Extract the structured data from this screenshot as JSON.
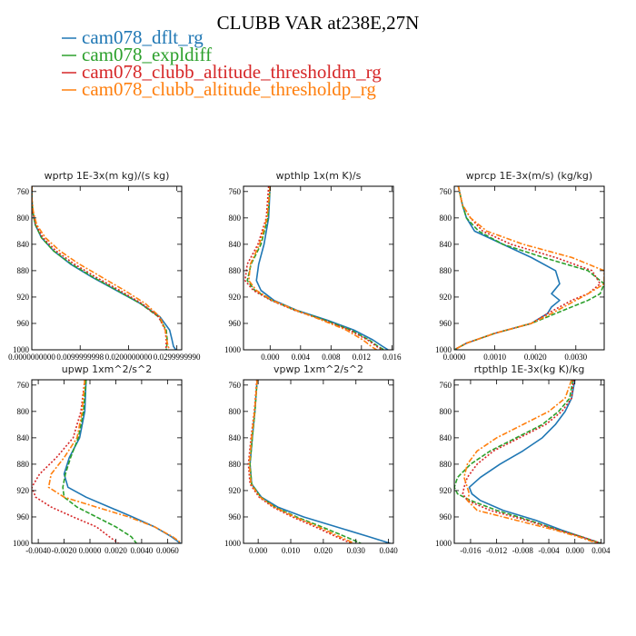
{
  "figure": {
    "title": "CLUBB VAR at238E,27N"
  },
  "legend": [
    {
      "name": "cam078_dflt_rg",
      "color": "#1f77b4"
    },
    {
      "name": "cam078_expldiff",
      "color": "#2ca02c"
    },
    {
      "name": "cam078_clubb_altitude_thresholdm_rg",
      "color": "#d62728"
    },
    {
      "name": "cam078_clubb_altitude_thresholdp_rg",
      "color": "#ff7f0e"
    }
  ],
  "chart_data": [
    {
      "type": "line",
      "title": "wprtp  1E-3x(m kg)/(s kg)",
      "xlim": [
        0,
        0.031
      ],
      "ylim": [
        1000,
        752
      ],
      "xticks": [
        0,
        0.01,
        0.02,
        0.03
      ],
      "xtick_labels": [
        "0.0000000000",
        "0.0099999998",
        "0.0200000000",
        "0.0299999990"
      ],
      "yticks": [
        760,
        800,
        840,
        880,
        920,
        960,
        1000
      ],
      "y": [
        752,
        770,
        790,
        810,
        830,
        850,
        870,
        890,
        910,
        930,
        950,
        970,
        985,
        995,
        1000
      ],
      "series": [
        {
          "name": "cam078_dflt_rg",
          "values": [
            0.0,
            0.0,
            0.0002,
            0.0007,
            0.002,
            0.0045,
            0.008,
            0.0125,
            0.0175,
            0.0225,
            0.0265,
            0.0285,
            0.029,
            0.0293,
            0.0298
          ]
        },
        {
          "name": "cam078_expldiff",
          "values": [
            0.0,
            0.0,
            0.0002,
            0.0007,
            0.002,
            0.0045,
            0.0082,
            0.0127,
            0.0177,
            0.0225,
            0.0262,
            0.0278,
            0.028,
            0.0279,
            0.0278
          ]
        },
        {
          "name": "cam078_clubb_altitude_thresholdm_rg",
          "values": [
            0.0,
            0.0,
            0.0002,
            0.0008,
            0.0023,
            0.005,
            0.0088,
            0.0133,
            0.0182,
            0.0228,
            0.0262,
            0.0276,
            0.0278,
            0.0278,
            0.0277
          ]
        },
        {
          "name": "cam078_clubb_altitude_thresholdp_rg",
          "values": [
            0.0,
            0.0,
            0.0003,
            0.001,
            0.0028,
            0.0058,
            0.0098,
            0.0145,
            0.0192,
            0.0235,
            0.0265,
            0.0276,
            0.0279,
            0.0282,
            0.0285
          ]
        }
      ]
    },
    {
      "type": "line",
      "title": "wpthlp  1x(m K)/s",
      "xlim": [
        -0.0035,
        0.0162
      ],
      "ylim": [
        1000,
        752
      ],
      "xticks": [
        0,
        0.004,
        0.008,
        0.012,
        0.016
      ],
      "xtick_labels": [
        "0.000",
        "0.004",
        "0.008",
        "0.012",
        "0.016"
      ],
      "yticks": [
        760,
        800,
        840,
        880,
        920,
        960,
        1000
      ],
      "y": [
        752,
        800,
        840,
        870,
        895,
        910,
        925,
        940,
        955,
        970,
        985,
        995,
        1000
      ],
      "series": [
        {
          "name": "cam078_dflt_rg",
          "values": [
            0.0,
            -0.0002,
            -0.0008,
            -0.0015,
            -0.0018,
            -0.0012,
            0.0005,
            0.0035,
            0.0075,
            0.011,
            0.0135,
            0.0148,
            0.0155
          ]
        },
        {
          "name": "cam078_expldiff",
          "values": [
            0.0,
            -0.0003,
            -0.0012,
            -0.0025,
            -0.003,
            -0.002,
            0.0002,
            0.0033,
            0.0072,
            0.0106,
            0.013,
            0.0142,
            0.015
          ]
        },
        {
          "name": "cam078_clubb_altitude_thresholdm_rg",
          "values": [
            -0.0002,
            -0.0005,
            -0.0016,
            -0.003,
            -0.0033,
            -0.0022,
            0.0001,
            0.0032,
            0.007,
            0.0104,
            0.0128,
            0.014,
            0.0147
          ]
        },
        {
          "name": "cam078_clubb_altitude_thresholdp_rg",
          "values": [
            0.0,
            -0.0004,
            -0.0014,
            -0.0026,
            -0.0028,
            -0.0018,
            0.0003,
            0.0034,
            0.0068,
            0.01,
            0.0122,
            0.0133,
            0.014
          ]
        }
      ]
    },
    {
      "type": "line",
      "title": "wprcp  1E-3x(m/s) (kg/kg)",
      "xlim": [
        0,
        0.0037
      ],
      "ylim": [
        1000,
        752
      ],
      "xticks": [
        0,
        0.001,
        0.002,
        0.003
      ],
      "xtick_labels": [
        "0.0000",
        "0.0010",
        "0.0020",
        "0.0030"
      ],
      "yticks": [
        760,
        800,
        840,
        880,
        920,
        960,
        1000
      ],
      "y": [
        752,
        780,
        800,
        820,
        840,
        860,
        880,
        900,
        915,
        925,
        935,
        945,
        960,
        975,
        990,
        1000
      ],
      "series": [
        {
          "name": "cam078_dflt_rg",
          "values": [
            0.0001,
            0.0002,
            0.0003,
            0.0005,
            0.0012,
            0.0019,
            0.0025,
            0.0026,
            0.0024,
            0.0026,
            0.0024,
            0.0023,
            0.0019,
            0.001,
            0.0003,
            0.0
          ]
        },
        {
          "name": "cam078_expldiff",
          "values": [
            0.0001,
            0.0002,
            0.0003,
            0.0006,
            0.0012,
            0.0022,
            0.0033,
            0.0037,
            0.0036,
            0.0033,
            0.0029,
            0.0025,
            0.0019,
            0.001,
            0.0003,
            0.0
          ]
        },
        {
          "name": "cam078_clubb_altitude_thresholdm_rg",
          "values": [
            0.0001,
            0.0002,
            0.0004,
            0.0007,
            0.0014,
            0.0025,
            0.0034,
            0.0036,
            0.0033,
            0.0029,
            0.0026,
            0.0023,
            0.0019,
            0.001,
            0.0003,
            0.0
          ]
        },
        {
          "name": "cam078_clubb_altitude_thresholdp_rg",
          "values": [
            0.0001,
            0.0002,
            0.0004,
            0.0008,
            0.0017,
            0.0029,
            0.0037,
            0.0037,
            0.0033,
            0.003,
            0.0027,
            0.0024,
            0.0019,
            0.001,
            0.0003,
            0.0
          ]
        }
      ]
    },
    {
      "type": "line",
      "title": "upwp  1xm^2/s^2",
      "xlim": [
        -0.0045,
        0.0071
      ],
      "ylim": [
        1000,
        752
      ],
      "xticks": [
        -0.004,
        -0.002,
        0,
        0.002,
        0.004,
        0.006
      ],
      "xtick_labels": [
        "-0.0040",
        "-0.0020",
        "0.0000",
        "0.0020",
        "0.0040",
        "0.0060"
      ],
      "yticks": [
        760,
        800,
        840,
        880,
        920,
        960,
        1000
      ],
      "y": [
        752,
        800,
        840,
        870,
        895,
        915,
        930,
        945,
        960,
        975,
        990,
        1000
      ],
      "series": [
        {
          "name": "cam078_dflt_rg",
          "values": [
            -0.0003,
            -0.0004,
            -0.0008,
            -0.0016,
            -0.002,
            -0.0017,
            -0.0003,
            0.0015,
            0.0033,
            0.005,
            0.0063,
            0.007
          ]
        },
        {
          "name": "cam078_expldiff",
          "values": [
            -0.0003,
            -0.0005,
            -0.0009,
            -0.0015,
            -0.0019,
            -0.0021,
            -0.002,
            -0.001,
            0.0005,
            0.002,
            0.0032,
            0.0036
          ]
        },
        {
          "name": "cam078_clubb_altitude_thresholdm_rg",
          "values": [
            -0.0004,
            -0.0007,
            -0.0013,
            -0.0026,
            -0.0039,
            -0.0045,
            -0.0042,
            -0.003,
            -0.0013,
            0.0005,
            0.0015,
            0.0022
          ]
        },
        {
          "name": "cam078_clubb_altitude_thresholdp_rg",
          "values": [
            -0.0004,
            -0.0006,
            -0.001,
            -0.002,
            -0.003,
            -0.0032,
            -0.002,
            0.0005,
            0.003,
            0.005,
            0.0064,
            0.0071
          ]
        }
      ]
    },
    {
      "type": "line",
      "title": "vpwp  1xm^2/s^2",
      "xlim": [
        -0.0045,
        0.0415
      ],
      "ylim": [
        1000,
        752
      ],
      "xticks": [
        0,
        0.01,
        0.02,
        0.03,
        0.04
      ],
      "xtick_labels": [
        "0.000",
        "0.010",
        "0.020",
        "0.030",
        "0.040"
      ],
      "yticks": [
        760,
        800,
        840,
        880,
        920,
        960,
        1000
      ],
      "y": [
        752,
        800,
        840,
        880,
        910,
        930,
        945,
        960,
        975,
        990,
        1000
      ],
      "series": [
        {
          "name": "cam078_dflt_rg",
          "values": [
            -0.0003,
            -0.001,
            -0.0018,
            -0.0025,
            -0.002,
            0.001,
            0.006,
            0.014,
            0.024,
            0.034,
            0.0405
          ]
        },
        {
          "name": "cam078_expldiff",
          "values": [
            -0.0003,
            -0.001,
            -0.0018,
            -0.0025,
            -0.002,
            0.0008,
            0.0052,
            0.0118,
            0.0195,
            0.0268,
            0.0315
          ]
        },
        {
          "name": "cam078_clubb_altitude_thresholdm_rg",
          "values": [
            -0.0004,
            -0.0012,
            -0.0022,
            -0.003,
            -0.0025,
            0.0003,
            0.0045,
            0.0105,
            0.0175,
            0.024,
            0.0285
          ]
        },
        {
          "name": "cam078_clubb_altitude_thresholdp_rg",
          "values": [
            -0.0003,
            -0.0011,
            -0.002,
            -0.0027,
            -0.0022,
            0.0006,
            0.005,
            0.0112,
            0.0185,
            0.025,
            0.0295
          ]
        }
      ]
    },
    {
      "type": "line",
      "title": "rtpthlp  1E-3x(kg K)/kg",
      "xlim": [
        -0.0185,
        0.0045
      ],
      "ylim": [
        1000,
        752
      ],
      "xticks": [
        -0.016,
        -0.012,
        -0.008,
        -0.004,
        0,
        0.004
      ],
      "xtick_labels": [
        "-0.016",
        "-0.012",
        "-0.008",
        "-0.004",
        "0.000",
        "0.004"
      ],
      "yticks": [
        760,
        800,
        840,
        880,
        920,
        960,
        1000
      ],
      "y": [
        752,
        780,
        800,
        820,
        840,
        860,
        880,
        900,
        915,
        925,
        935,
        950,
        965,
        980,
        990,
        1000
      ],
      "series": [
        {
          "name": "cam078_dflt_rg",
          "values": [
            0.0,
            -0.0005,
            -0.0015,
            -0.003,
            -0.005,
            -0.008,
            -0.0115,
            -0.0145,
            -0.0162,
            -0.0158,
            -0.0145,
            -0.011,
            -0.006,
            -0.002,
            0.001,
            0.004
          ]
        },
        {
          "name": "cam078_expldiff",
          "values": [
            -0.0003,
            -0.0008,
            -0.0025,
            -0.005,
            -0.009,
            -0.013,
            -0.016,
            -0.018,
            -0.0185,
            -0.018,
            -0.016,
            -0.012,
            -0.007,
            -0.0025,
            0.001,
            0.004
          ]
        },
        {
          "name": "cam078_clubb_altitude_thresholdm_rg",
          "values": [
            -0.0002,
            -0.0005,
            -0.002,
            -0.0045,
            -0.0085,
            -0.0125,
            -0.015,
            -0.0165,
            -0.017,
            -0.0172,
            -0.0165,
            -0.013,
            -0.0075,
            -0.0025,
            0.001,
            0.004
          ]
        },
        {
          "name": "cam078_clubb_altitude_thresholdp_rg",
          "values": [
            -0.0005,
            -0.0015,
            -0.004,
            -0.008,
            -0.012,
            -0.015,
            -0.0165,
            -0.017,
            -0.0165,
            -0.0162,
            -0.0165,
            -0.015,
            -0.009,
            -0.003,
            0.0005,
            0.0035
          ]
        }
      ]
    }
  ]
}
